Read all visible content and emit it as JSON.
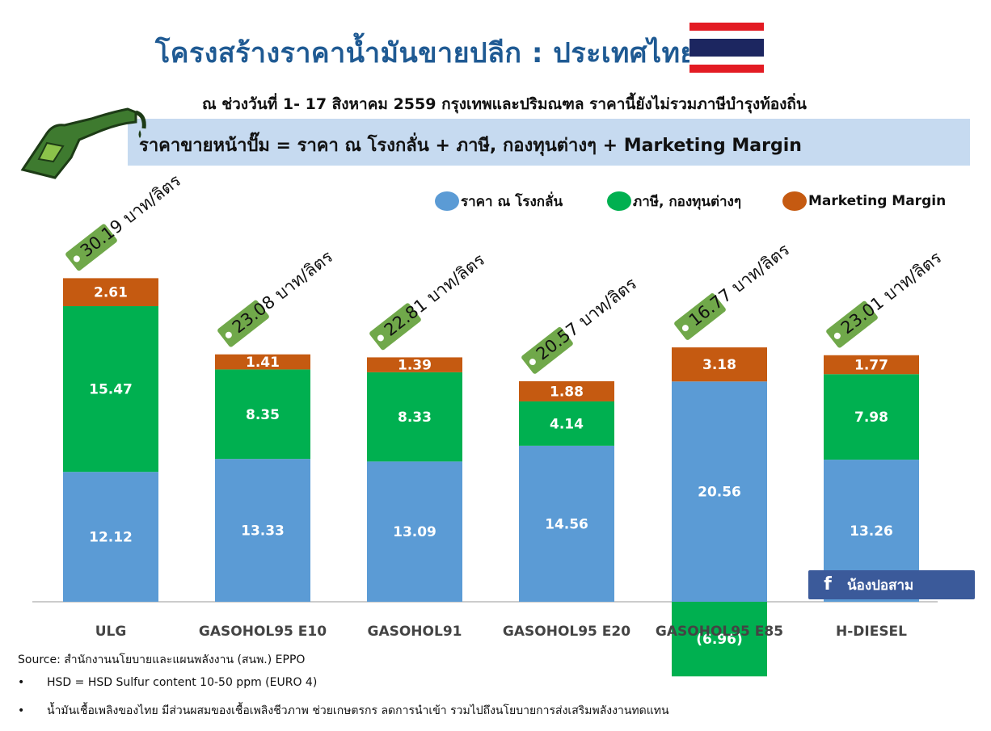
{
  "title": "โครงสร้างราคาน้ำมันขายปลีก : ประเทศไทย",
  "subtitle": "ณ ช่วงวันที่ 1- 17 สิงหาคม 2559 กรุงเทพและปริมณฑล ราคานี้ยังไม่รวมภาษีบำรุงท้องถิ่น",
  "formula": "ราคาขายหน้าปั๊ม = ราคา ณ โรงกลั่น + ภาษี, กองทุนต่างๆ + Marketing Margin",
  "colors": {
    "refinery": "#5b9bd5",
    "tax": "#00b050",
    "margin": "#c55a11",
    "title": "#1f5a93",
    "formula_bg": "#c6daf0",
    "tag": "#70a84a",
    "flag_red": "#e31b23",
    "flag_blue": "#1c2660"
  },
  "legend": [
    {
      "label": "ราคา ณ โรงกลั่น",
      "color": "#5b9bd5"
    },
    {
      "label": "ภาษี, กองทุนต่างๆ",
      "color": "#00b050"
    },
    {
      "label": "Marketing Margin",
      "color": "#c55a11"
    }
  ],
  "chart_data": {
    "type": "bar",
    "stacked": true,
    "categories": [
      "ULG",
      "GASOHOL95 E10",
      "GASOHOL91",
      "GASOHOL95 E20",
      "GASOHOL95 E85",
      "H-DIESEL"
    ],
    "series": [
      {
        "name": "ราคา ณ โรงกลั่น",
        "values": [
          12.12,
          13.33,
          13.09,
          14.56,
          20.56,
          13.26
        ],
        "labels": [
          "12.12",
          "13.33",
          "13.09",
          "14.56",
          "20.56",
          "13.26"
        ]
      },
      {
        "name": "ภาษี, กองทุนต่างๆ",
        "values": [
          15.47,
          8.35,
          8.33,
          4.14,
          -6.96,
          7.98
        ],
        "labels": [
          "15.47",
          "8.35",
          "8.33",
          "4.14",
          "(6.96)",
          "7.98"
        ]
      },
      {
        "name": "Marketing Margin",
        "values": [
          2.61,
          1.41,
          1.39,
          1.88,
          3.18,
          1.77
        ],
        "labels": [
          "2.61",
          "1.41",
          "1.39",
          "1.88",
          "3.18",
          "1.77"
        ]
      }
    ],
    "price_tags": [
      "30.19 บาท/ลิตร",
      "23.08 บาท/ลิตร",
      "22.81 บาท/ลิตร",
      "20.57 บาท/ลิตร",
      "16.77 บาท/ลิตร",
      "23.01 บาท/ลิตร"
    ],
    "ylim": [
      -7,
      30.19
    ]
  },
  "source": "Source: สำนักงานนโยบายและแผนพลังงาน (สนพ.) EPPO",
  "notes": [
    "HSD = HSD Sulfur content 10-50 ppm (EURO 4)",
    "น้ำมันเชื้อเพลิงของไทย มีส่วนผสมของเชื้อเพลิงชีวภาพ ช่วยเกษตรกร ลดการนำเข้า รวมไปถึงนโยบายการส่งเสริมพลังงานทดแทน"
  ],
  "facebook": {
    "icon": "facebook-icon",
    "label": "น้องปอสาม"
  }
}
